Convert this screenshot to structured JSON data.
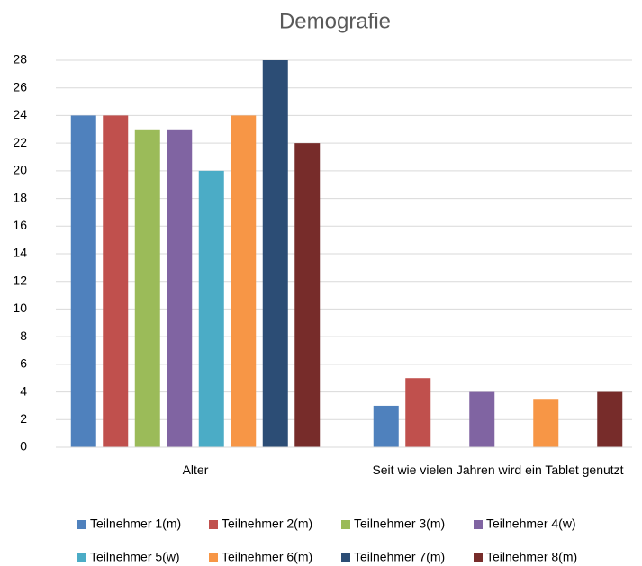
{
  "chart_data": {
    "type": "bar",
    "title": "Demografie",
    "categories": [
      "Alter",
      "Seit wie vielen Jahren wird ein Tablet genutzt"
    ],
    "series": [
      {
        "name": "Teilnehmer 1(m)",
        "color": "#4f81bd",
        "values": [
          24,
          3
        ]
      },
      {
        "name": "Teilnehmer 2(m)",
        "color": "#c0504d",
        "values": [
          24,
          5
        ]
      },
      {
        "name": "Teilnehmer 3(m)",
        "color": "#9bbb59",
        "values": [
          23,
          null
        ]
      },
      {
        "name": "Teilnehmer 4(w)",
        "color": "#8064a2",
        "values": [
          23,
          4
        ]
      },
      {
        "name": "Teilnehmer 5(w)",
        "color": "#4bacc6",
        "values": [
          20,
          null
        ]
      },
      {
        "name": "Teilnehmer 6(m)",
        "color": "#f79646",
        "values": [
          24,
          3.5
        ]
      },
      {
        "name": "Teilnehmer 7(m)",
        "color": "#2c4d75",
        "values": [
          28,
          null
        ]
      },
      {
        "name": "Teilnehmer 8(m)",
        "color": "#772c2a",
        "values": [
          22,
          4
        ]
      }
    ],
    "ylim": [
      0,
      28
    ],
    "yticks": [
      0,
      2,
      4,
      6,
      8,
      10,
      12,
      14,
      16,
      18,
      20,
      22,
      24,
      26,
      28
    ],
    "grid": true,
    "legend": "bottom"
  }
}
